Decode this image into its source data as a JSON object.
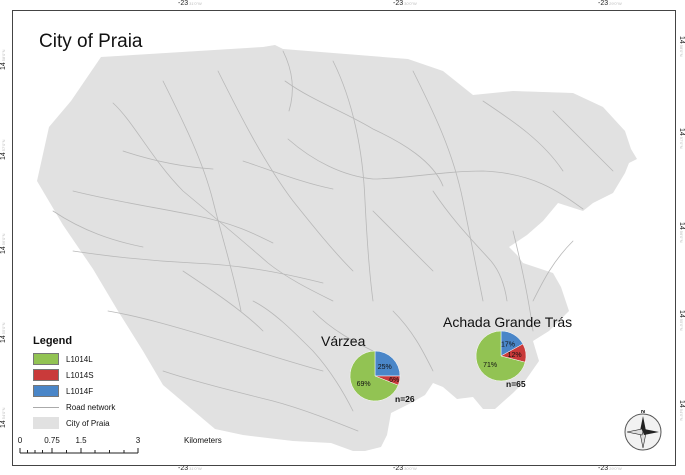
{
  "map": {
    "title": "City of Praia",
    "coords": {
      "top": [
        {
          "value": "-23",
          "faint": "31'0\"W"
        },
        {
          "value": "-23",
          "faint": "30'0\"W"
        },
        {
          "value": "-23",
          "faint": "29'0\"W"
        }
      ],
      "bottom": [
        {
          "value": "-23",
          "faint": "31'0\"W"
        },
        {
          "value": "-23",
          "faint": "30'0\"W"
        },
        {
          "value": "-23",
          "faint": "29'0\"W"
        }
      ],
      "left": [
        {
          "value": "14",
          "faint": "58'0\"N"
        },
        {
          "value": "14",
          "faint": "57'0\"N"
        },
        {
          "value": "14",
          "faint": "56'0\"N"
        },
        {
          "value": "14",
          "faint": "55'0\"N"
        },
        {
          "value": "14",
          "faint": "54'0\"N"
        }
      ],
      "right": [
        {
          "value": "14",
          "faint": "58'0\"N"
        },
        {
          "value": "14",
          "faint": "57'0\"N"
        },
        {
          "value": "14",
          "faint": "56'0\"N"
        },
        {
          "value": "14",
          "faint": "55'0\"N"
        },
        {
          "value": "14",
          "faint": "54'0\"N"
        }
      ]
    },
    "colors": {
      "city_fill": "#e1e1e1",
      "road": "#b8b8b8",
      "L1014L": "#92c353",
      "L1014S": "#c93a3a",
      "L1014F": "#4a86c8"
    }
  },
  "sites": [
    {
      "name": "Várzea",
      "n": "n=26",
      "slices": [
        {
          "allele": "L1014F",
          "value": 25,
          "label": "25%"
        },
        {
          "allele": "L1014S",
          "value": 6,
          "label": "6%"
        },
        {
          "allele": "L1014L",
          "value": 69,
          "label": "69%"
        }
      ]
    },
    {
      "name": "Achada Grande Trás",
      "n": "n=65",
      "slices": [
        {
          "allele": "L1014F",
          "value": 17,
          "label": "17%"
        },
        {
          "allele": "L1014S",
          "value": 12,
          "label": "12%"
        },
        {
          "allele": "L1014L",
          "value": 71,
          "label": "71%"
        }
      ]
    }
  ],
  "legend": {
    "title": "Legend",
    "items": [
      {
        "label": "L1014L",
        "kind": "swatch",
        "color": "#92c353"
      },
      {
        "label": "L1014S",
        "kind": "swatch",
        "color": "#c93a3a"
      },
      {
        "label": "L1014F",
        "kind": "swatch",
        "color": "#4a86c8"
      },
      {
        "label": "Road network",
        "kind": "line",
        "color": "#b8b8b8"
      },
      {
        "label": "City of Praia",
        "kind": "swatch",
        "color": "#e1e1e1"
      }
    ]
  },
  "scalebar": {
    "labels": [
      "0",
      "0.75",
      "1.5",
      "3"
    ],
    "units": "Kilometers"
  },
  "north_arrow": {
    "label": "N"
  }
}
